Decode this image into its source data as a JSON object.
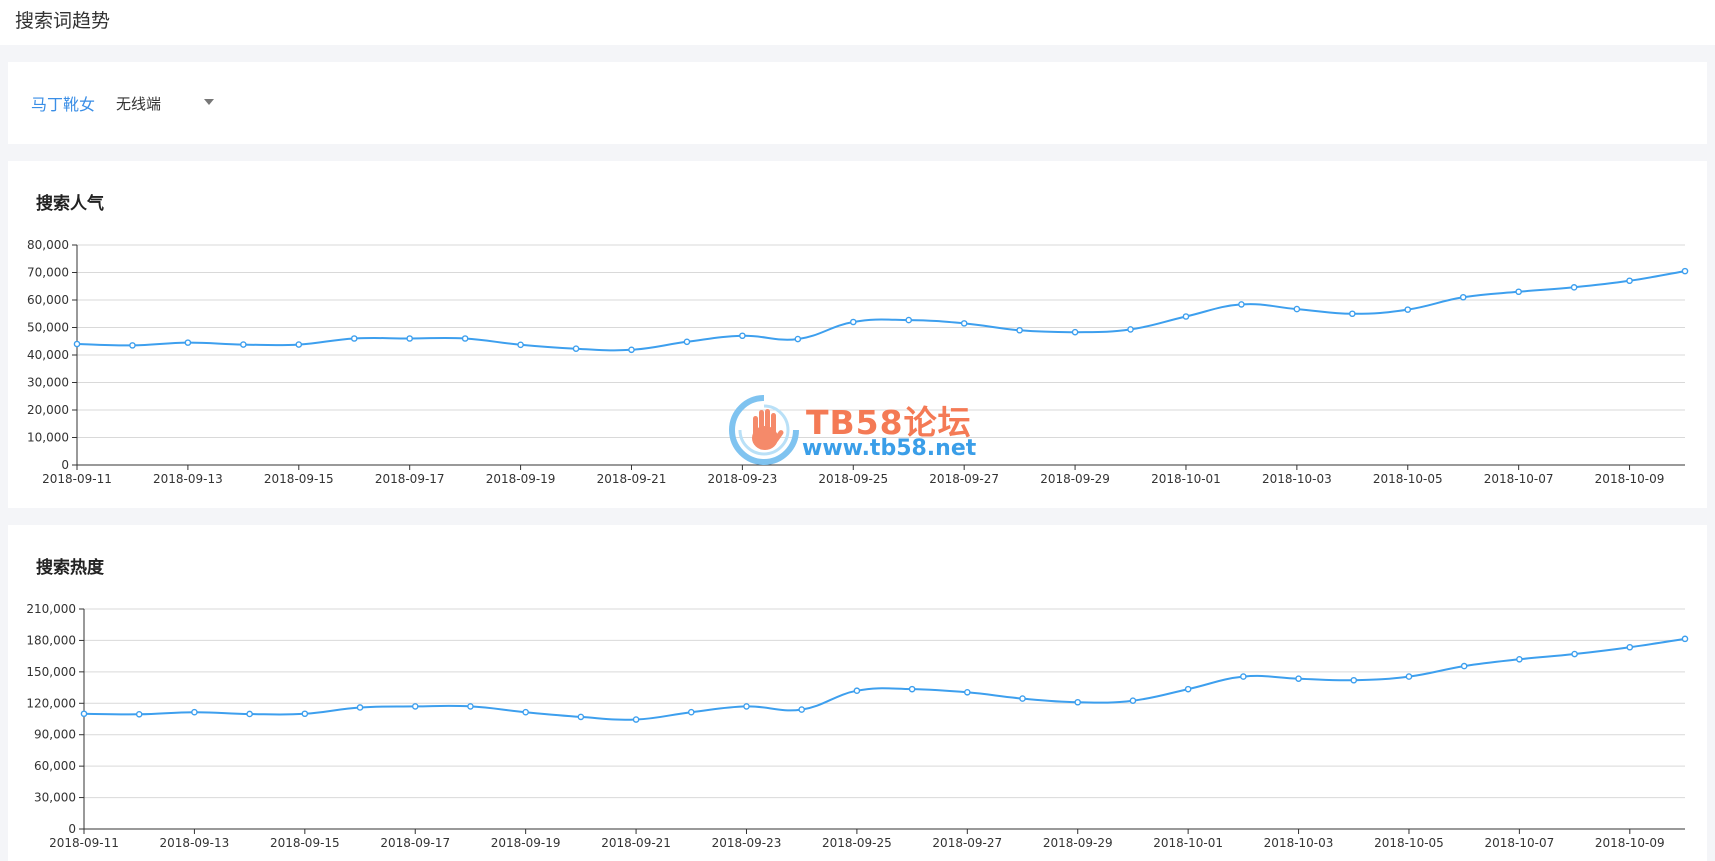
{
  "page": {
    "title": "搜索词趋势"
  },
  "filters": {
    "keyword": "马丁靴女",
    "device": "无线端"
  },
  "watermark": {
    "brand": "TB58论坛",
    "url": "www.tb58.net"
  },
  "colors": {
    "line": "#3d9fee",
    "grid": "#d9d9d9",
    "keyword": "#3a8ee6"
  },
  "chart_data": [
    {
      "type": "line",
      "title": "搜索人气",
      "x": [
        "2018-09-11",
        "2018-09-12",
        "2018-09-13",
        "2018-09-14",
        "2018-09-15",
        "2018-09-16",
        "2018-09-17",
        "2018-09-18",
        "2018-09-19",
        "2018-09-20",
        "2018-09-21",
        "2018-09-22",
        "2018-09-23",
        "2018-09-24",
        "2018-09-25",
        "2018-09-26",
        "2018-09-27",
        "2018-09-28",
        "2018-09-29",
        "2018-09-30",
        "2018-10-01",
        "2018-10-02",
        "2018-10-03",
        "2018-10-04",
        "2018-10-05",
        "2018-10-06",
        "2018-10-07",
        "2018-10-08",
        "2018-10-09",
        "2018-10-10"
      ],
      "xticks": [
        "2018-09-11",
        "2018-09-13",
        "2018-09-15",
        "2018-09-17",
        "2018-09-19",
        "2018-09-21",
        "2018-09-23",
        "2018-09-25",
        "2018-09-27",
        "2018-09-29",
        "2018-10-01",
        "2018-10-03",
        "2018-10-05",
        "2018-10-07",
        "2018-10-09"
      ],
      "values": [
        44000,
        43500,
        44500,
        43800,
        43800,
        46000,
        46000,
        46000,
        43700,
        42300,
        41900,
        44800,
        47000,
        45800,
        52000,
        52700,
        51500,
        49000,
        48300,
        49300,
        54000,
        58400,
        56700,
        55000,
        56500,
        61000,
        63000,
        64600,
        67000,
        70500
      ],
      "ylim": [
        0,
        80000
      ],
      "yticks": [
        "0",
        "10,000",
        "20,000",
        "30,000",
        "40,000",
        "50,000",
        "60,000",
        "70,000",
        "80,000"
      ],
      "grid": true
    },
    {
      "type": "line",
      "title": "搜索热度",
      "x": [
        "2018-09-11",
        "2018-09-12",
        "2018-09-13",
        "2018-09-14",
        "2018-09-15",
        "2018-09-16",
        "2018-09-17",
        "2018-09-18",
        "2018-09-19",
        "2018-09-20",
        "2018-09-21",
        "2018-09-22",
        "2018-09-23",
        "2018-09-24",
        "2018-09-25",
        "2018-09-26",
        "2018-09-27",
        "2018-09-28",
        "2018-09-29",
        "2018-09-30",
        "2018-10-01",
        "2018-10-02",
        "2018-10-03",
        "2018-10-04",
        "2018-10-05",
        "2018-10-06",
        "2018-10-07",
        "2018-10-08",
        "2018-10-09",
        "2018-10-10"
      ],
      "xticks": [
        "2018-09-11",
        "2018-09-13",
        "2018-09-15",
        "2018-09-17",
        "2018-09-19",
        "2018-09-21",
        "2018-09-23",
        "2018-09-25",
        "2018-09-27",
        "2018-09-29",
        "2018-10-01",
        "2018-10-03",
        "2018-10-05",
        "2018-10-07",
        "2018-10-09"
      ],
      "values": [
        110000,
        109500,
        111500,
        109800,
        110000,
        116000,
        117000,
        117000,
        111500,
        107000,
        104500,
        111500,
        117000,
        114000,
        132000,
        133500,
        130500,
        124500,
        121000,
        122500,
        133500,
        145500,
        143500,
        142000,
        145500,
        155500,
        162000,
        167000,
        173500,
        181500
      ],
      "ylim": [
        0,
        210000
      ],
      "yticks": [
        "0",
        "30,000",
        "60,000",
        "90,000",
        "120,000",
        "150,000",
        "180,000",
        "210,000"
      ],
      "grid": true
    }
  ]
}
